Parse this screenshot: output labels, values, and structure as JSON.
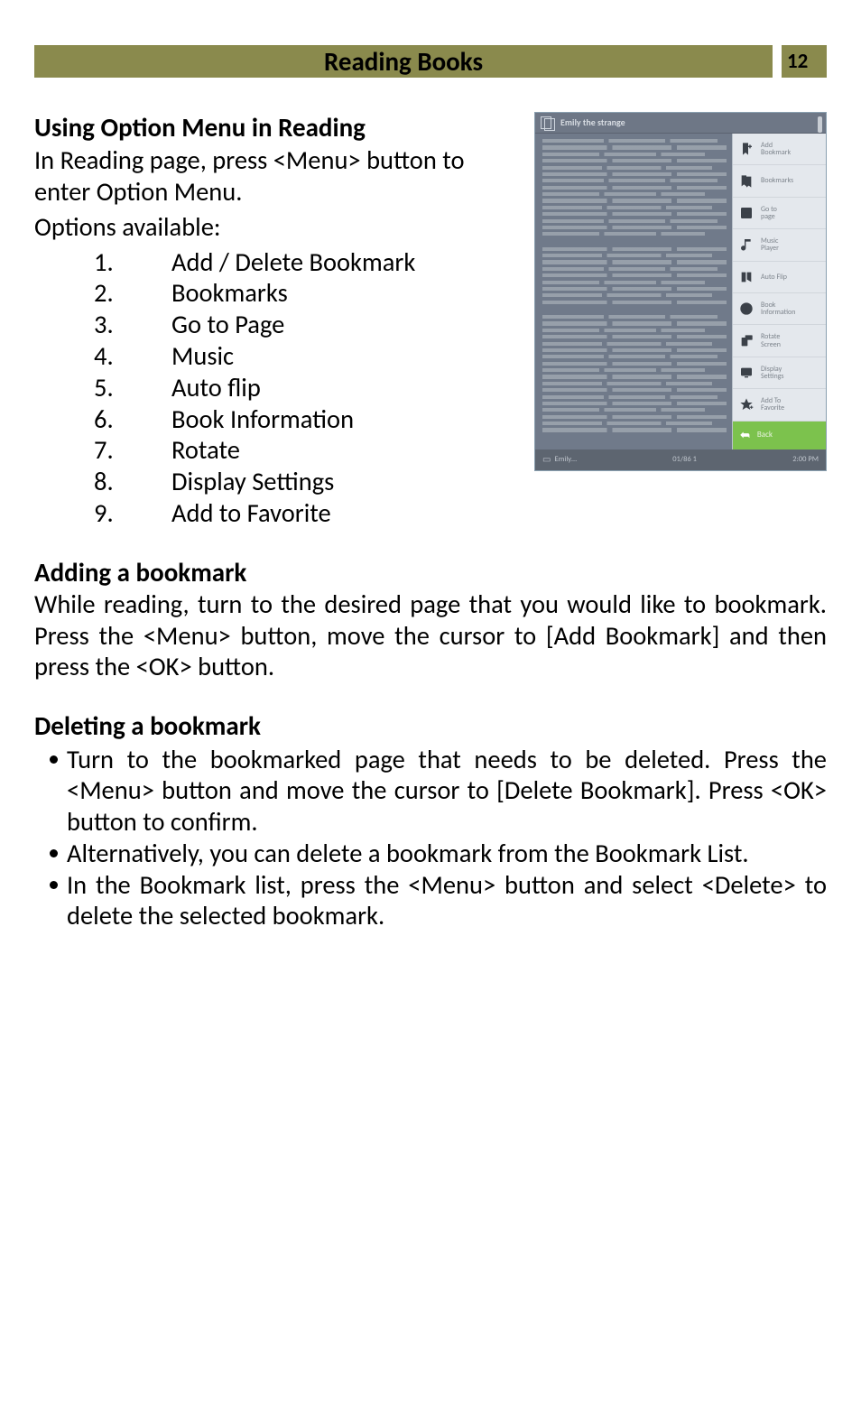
{
  "header": {
    "title": "Reading Books",
    "page_number": "12",
    "bar_color": "#8a8a4d",
    "title_fontsize": 29,
    "page_fontsize": 23
  },
  "section_option_menu": {
    "heading": "Using Option Menu in Reading",
    "intro": "In Reading page, press <Menu> button to enter Option Menu.",
    "options_available": "Options available:",
    "items": [
      {
        "num": "1.",
        "label": "Add / Delete Bookmark"
      },
      {
        "num": "2.",
        "label": "Bookmarks"
      },
      {
        "num": "3.",
        "label": "Go to Page"
      },
      {
        "num": "4.",
        "label": "Music"
      },
      {
        "num": "5.",
        "label": "Auto flip"
      },
      {
        "num": "6.",
        "label": "Book Information"
      },
      {
        "num": "7.",
        "label": "Rotate"
      },
      {
        "num": "8.",
        "label": "Display Settings"
      },
      {
        "num": "9.",
        "label": "Add to Favorite"
      }
    ]
  },
  "figure": {
    "title": "Emily the strange",
    "menu": [
      {
        "icon": "bookmark-add-icon",
        "label": "Add\nBookmark"
      },
      {
        "icon": "bookmarks-icon",
        "label": "Bookmarks"
      },
      {
        "icon": "goto-page-icon",
        "label": "Go to\npage"
      },
      {
        "icon": "music-icon",
        "label": "Music\nPlayer"
      },
      {
        "icon": "autoflip-icon",
        "label": "Auto Flip"
      },
      {
        "icon": "info-icon",
        "label": "Book\nInformation"
      },
      {
        "icon": "rotate-icon",
        "label": "Rotate\nScreen"
      },
      {
        "icon": "display-icon",
        "label": "Display\nSettings"
      },
      {
        "icon": "favorite-icon",
        "label": "Add To\nFavorite"
      }
    ],
    "back_label": "Back",
    "footer_left": "Emily…",
    "footer_center": "01/86  1",
    "footer_right": "2:00 PM",
    "colors": {
      "panel_bg": "#707a8a",
      "menu_bg": "#e4e8ed",
      "back_bg": "#7cc24d",
      "footer_bg": "#5d6570",
      "menu_label": "#7d848c"
    }
  },
  "section_add_bookmark": {
    "heading": "Adding a bookmark",
    "body": "While reading, turn to the desired page that you would like to bookmark. Press the <Menu> button, move the cursor to [Add Bookmark] and then press the <OK> button."
  },
  "section_delete_bookmark": {
    "heading": "Deleting a bookmark",
    "bullets": [
      "Turn to the bookmarked page that needs to be deleted. Press the <Menu> button and move the cursor to [Delete Bookmark]. Press <OK>  button to confirm.",
      "Alternatively, you can delete a bookmark from the Bookmark List.",
      "In the Bookmark list, press the <Menu> button and select <Delete> to delete the selected bookmark."
    ]
  },
  "typography": {
    "body_fontsize": 28.5,
    "heading_fontsize": 29,
    "font_family": "Calibri"
  }
}
